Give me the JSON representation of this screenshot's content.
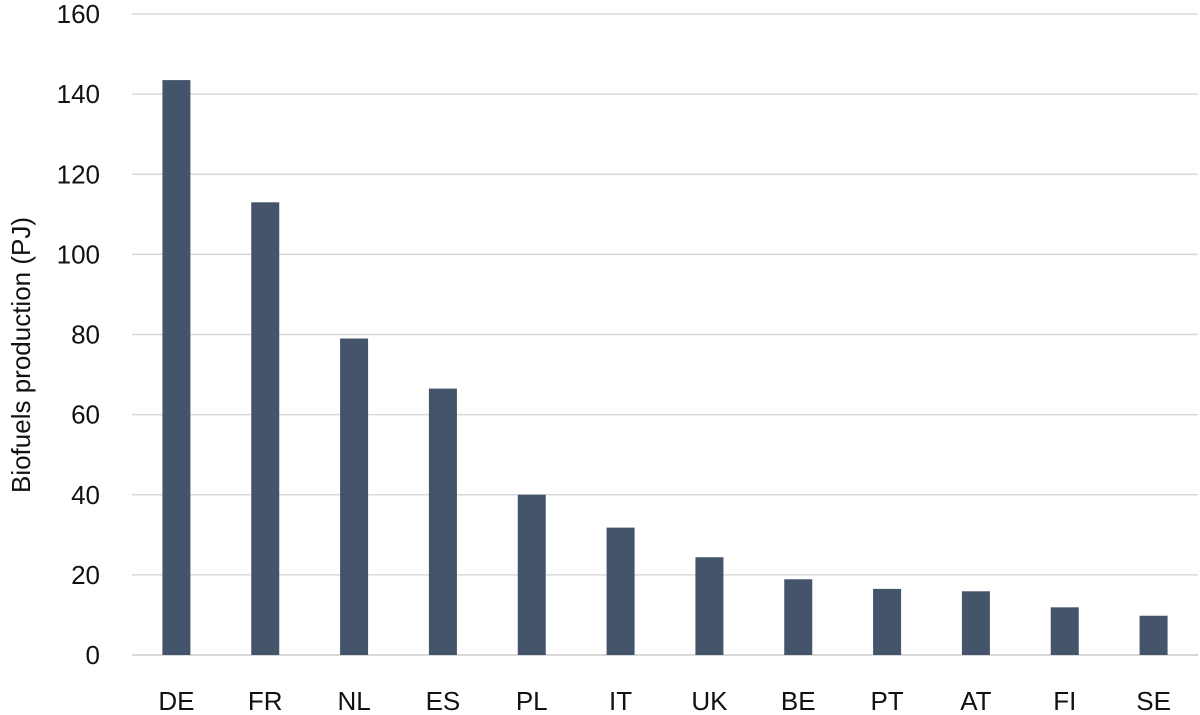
{
  "chart_data": {
    "type": "bar",
    "title": "",
    "xlabel": "",
    "ylabel": "Biofuels production (PJ)",
    "categories": [
      "DE",
      "FR",
      "NL",
      "ES",
      "PL",
      "IT",
      "UK",
      "BE",
      "PT",
      "AT",
      "FI",
      "SE"
    ],
    "values": [
      143.5,
      113,
      79,
      66.5,
      40,
      31.8,
      24.4,
      18.9,
      16.5,
      15.9,
      11.9,
      9.8
    ],
    "ylim": [
      0,
      160
    ],
    "yticks": [
      0,
      20,
      40,
      60,
      80,
      100,
      120,
      140,
      160
    ],
    "grid": true,
    "legend": "none",
    "bar_color": "#44546a",
    "grid_color": "#d9d9d9"
  }
}
